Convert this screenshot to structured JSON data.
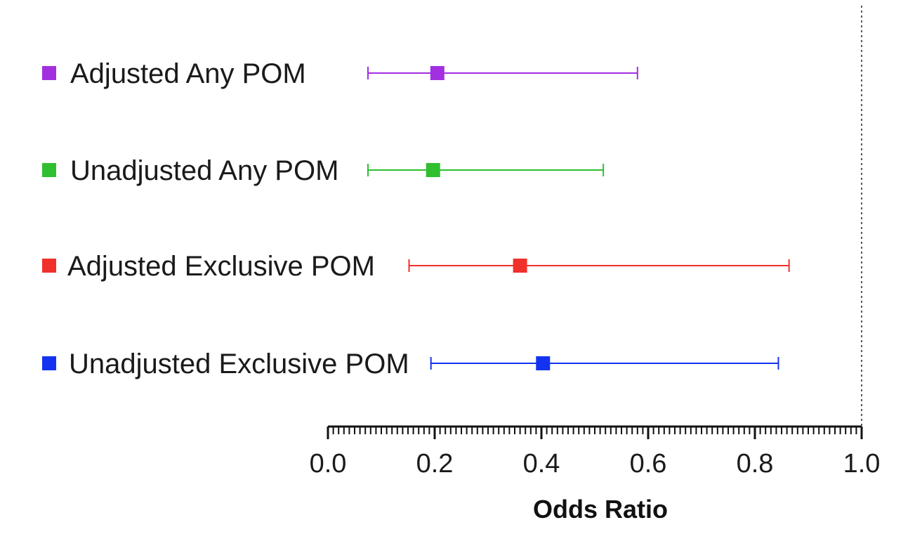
{
  "chart_data": {
    "type": "forest",
    "xlabel": "Odds Ratio",
    "xlim": [
      0.0,
      1.0
    ],
    "x_ticks": [
      "0.0",
      "0.2",
      "0.4",
      "0.6",
      "0.8",
      "1.0"
    ],
    "reference_line": 1.0,
    "rows": [
      {
        "name": "Adjusted Any POM",
        "or": 0.205,
        "ci_low": 0.075,
        "ci_high": 0.58,
        "color": "#a22fe0"
      },
      {
        "name": "Unadjusted Any POM",
        "or": 0.197,
        "ci_low": 0.075,
        "ci_high": 0.516,
        "color": "#2fbf2f"
      },
      {
        "name": "Adjusted Exclusive POM",
        "or": 0.36,
        "ci_low": 0.152,
        "ci_high": 0.864,
        "color": "#f0302a"
      },
      {
        "name": "Unadjusted Exclusive POM",
        "or": 0.403,
        "ci_low": 0.193,
        "ci_high": 0.844,
        "color": "#1433f0"
      }
    ]
  }
}
